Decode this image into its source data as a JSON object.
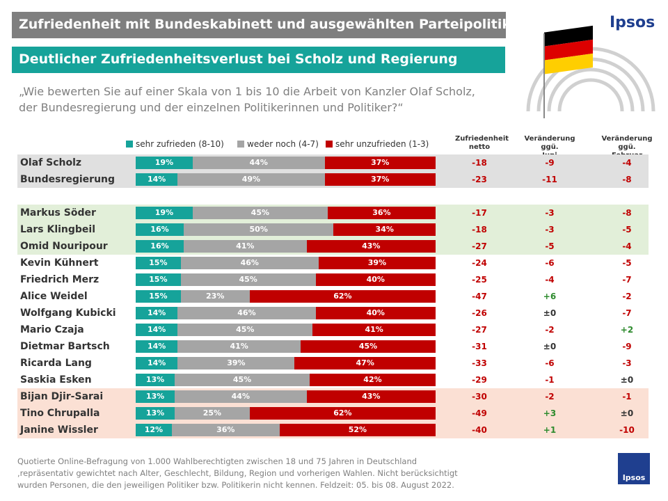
{
  "header": {
    "title": "Zufriedenheit mit Bundeskabinett und ausgewählten Parteipolitikern",
    "subtitle": "Deutlicher Zufriedenheitsverlust bei Scholz und Regierung",
    "question": "„Wie bewerten Sie auf einer Skala von 1 bis 10 die Arbeit von Kanzler Olaf Scholz, der Bundesregierung  und der einzelnen Politikerinnen und Politiker?“",
    "logo": "Ipsos"
  },
  "legend": {
    "satisfied": "sehr zufrieden (8-10)",
    "neutral": "weder noch (4-7)",
    "dissatisfied": "sehr unzufrieden (1-3)"
  },
  "columns": {
    "netto_line1": "Zufriedenheit",
    "netto_line2": "netto",
    "june_line1": "Veränderung ggü.",
    "june_line2": "Juni",
    "feb_line1": "Veränderung ggü.",
    "feb_line2": "Februar"
  },
  "colors": {
    "satisfied": "#16a39a",
    "neutral": "#a5a5a5",
    "dissatisfied": "#c00000",
    "negative_text": "#c00000",
    "positive_text": "#2e8b2e",
    "neutral_text": "#333333",
    "band_gray": "#e0e0e0",
    "band_green": "#e2efd9",
    "band_salmon": "#fbe0d4"
  },
  "chart_data": {
    "type": "bar",
    "stacked": true,
    "orientation": "horizontal",
    "categories": [
      "Olaf Scholz",
      "Bundesregierung",
      "Markus Söder",
      "Lars Klingbeil",
      "Omid Nouripour",
      "Kevin Kühnert",
      "Friedrich Merz",
      "Alice Weidel",
      "Wolfgang Kubicki",
      "Mario Czaja",
      "Dietmar Bartsch",
      "Ricarda Lang",
      "Saskia Esken",
      "Bijan Djir-Sarai",
      "Tino Chrupalla",
      "Janine Wissler"
    ],
    "series": [
      {
        "name": "sehr zufrieden (8-10)",
        "values": [
          19,
          14,
          19,
          16,
          16,
          15,
          15,
          15,
          14,
          14,
          14,
          14,
          13,
          13,
          13,
          12
        ]
      },
      {
        "name": "weder noch (4-7)",
        "values": [
          44,
          49,
          45,
          50,
          41,
          46,
          45,
          23,
          46,
          45,
          41,
          39,
          45,
          44,
          25,
          36
        ]
      },
      {
        "name": "sehr unzufrieden (1-3)",
        "values": [
          37,
          37,
          36,
          34,
          43,
          39,
          40,
          62,
          40,
          41,
          45,
          47,
          42,
          43,
          62,
          52
        ]
      }
    ],
    "xlim": [
      0,
      100
    ],
    "table": {
      "netto": [
        "-18",
        "-23",
        "-17",
        "-18",
        "-27",
        "-24",
        "-25",
        "-47",
        "-26",
        "-27",
        "-31",
        "-33",
        "-29",
        "-30",
        "-49",
        "-40"
      ],
      "change_june": [
        "-9",
        "-11",
        "-3",
        "-3",
        "-5",
        "-6",
        "-4",
        "+6",
        "±0",
        "-2",
        "±0",
        "-6",
        "-1",
        "-2",
        "+3",
        "+1"
      ],
      "change_feb": [
        "-4",
        "-8",
        "-8",
        "-5",
        "-4",
        "-5",
        "-7",
        "-2",
        "-7",
        "+2",
        "-9",
        "-3",
        "±0",
        "-1",
        "±0",
        "-10"
      ]
    },
    "row_groups": [
      "gray",
      "gray",
      "green",
      "green",
      "green",
      "white",
      "white",
      "white",
      "white",
      "white",
      "white",
      "white",
      "white",
      "salmon",
      "salmon",
      "salmon"
    ]
  },
  "footnote": {
    "line1": "Quotierte Online-Befragung von 1.000 Wahlberechtigten zwischen 18 und 75 Jahren in Deutschland",
    "line2": ",repräsentativ gewichtet nach Alter, Geschlecht, Bildung, Region und vorherigen Wahlen. Nicht berücksichtigt",
    "line3": "wurden Personen, die den jeweiligen Politiker bzw. Politikerin nicht kennen. Feldzeit: 05. bis 08.  August 2022."
  }
}
